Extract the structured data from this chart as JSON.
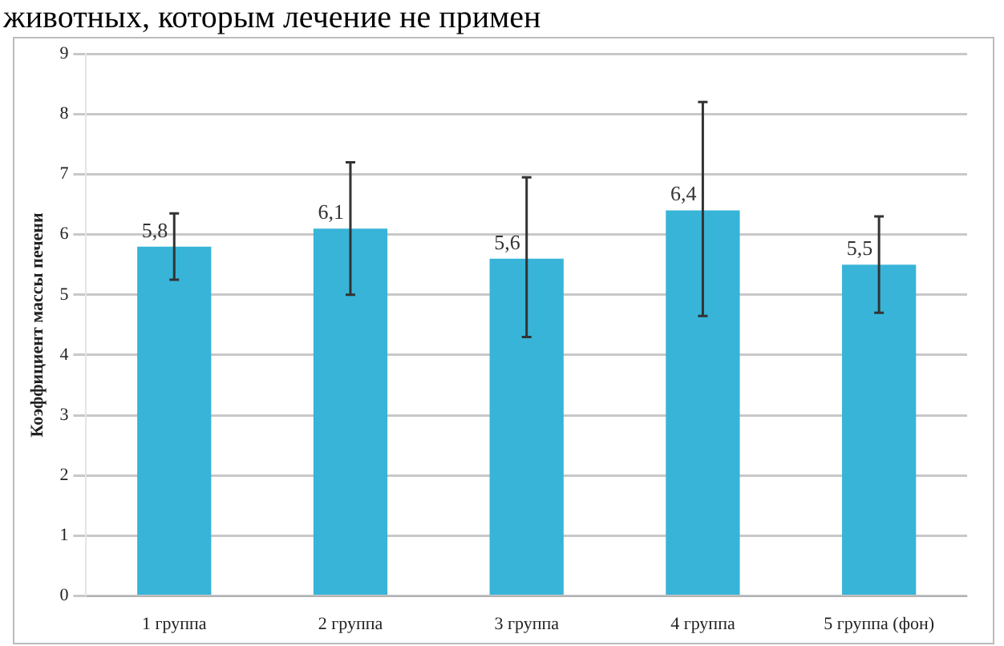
{
  "chart_data": {
    "type": "bar",
    "ylabel": "Коэффициент массы печени",
    "annotations": [
      "животных, которым лечение не примен"
    ],
    "categories": [
      "1 группа",
      "2 группа",
      "3 группа",
      "4 группа",
      "5 группа (фон)"
    ],
    "values": [
      5.8,
      6.1,
      5.6,
      6.4,
      5.5
    ],
    "value_labels": [
      "5,8",
      "6,1",
      "5,6",
      "6,4",
      "5,5"
    ],
    "errors": [
      [
        5.25,
        6.35
      ],
      [
        5.0,
        7.2
      ],
      [
        4.3,
        6.95
      ],
      [
        4.65,
        8.2
      ],
      [
        4.7,
        6.3
      ]
    ],
    "color": "#38b4d8",
    "ylim": [
      0,
      9
    ],
    "yticks": [
      0,
      1,
      2,
      3,
      4,
      5,
      6,
      7,
      8,
      9
    ],
    "grid": "y",
    "legend": false
  }
}
